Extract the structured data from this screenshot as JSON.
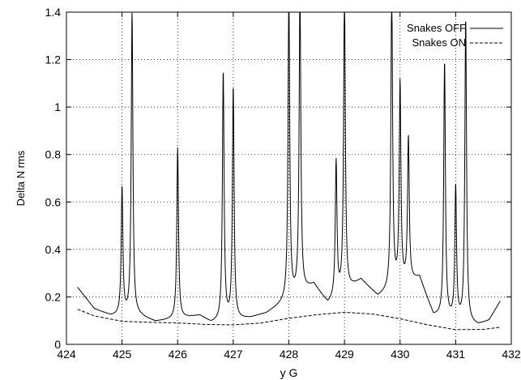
{
  "chart_data": {
    "type": "line",
    "title": "",
    "xlabel": "y G",
    "ylabel": "Delta N rms",
    "xlim": [
      424,
      432
    ],
    "ylim": [
      0,
      1.4
    ],
    "x_ticks": [
      424,
      425,
      426,
      427,
      428,
      429,
      430,
      431,
      432
    ],
    "x_tick_labels": [
      "424",
      "425",
      "426",
      "427",
      "428",
      "429",
      "430",
      "431",
      "432"
    ],
    "y_ticks": [
      0,
      0.2,
      0.4,
      0.6,
      0.8,
      1,
      1.2,
      1.4
    ],
    "y_tick_labels": [
      "0",
      "0.2",
      "0.4",
      "0.6",
      "0.8",
      "1",
      "1.2",
      "1.4"
    ],
    "grid": "dotted",
    "legend_position": "top-right",
    "series": [
      {
        "name": "Snakes OFF",
        "style": "solid",
        "color": "#000000",
        "resonances": [
          {
            "x": 425.0,
            "peak": 0.66
          },
          {
            "x": 425.18,
            "peak": 1.4
          },
          {
            "x": 426.0,
            "peak": 0.84
          },
          {
            "x": 426.82,
            "peak": 1.17
          },
          {
            "x": 427.0,
            "peak": 1.1
          },
          {
            "x": 428.0,
            "peak": 1.4
          },
          {
            "x": 428.2,
            "peak": 1.4
          },
          {
            "x": 428.85,
            "peak": 0.69
          },
          {
            "x": 429.0,
            "peak": 1.4
          },
          {
            "x": 429.85,
            "peak": 1.4
          },
          {
            "x": 430.0,
            "peak": 0.97
          },
          {
            "x": 430.15,
            "peak": 0.73
          },
          {
            "x": 430.8,
            "peak": 1.2
          },
          {
            "x": 431.0,
            "peak": 0.68
          },
          {
            "x": 431.18,
            "peak": 1.4
          }
        ],
        "x": [
          424.2,
          424.5,
          424.8,
          425.3,
          425.6,
          426.4,
          426.6,
          427.3,
          427.6,
          428.45,
          428.7,
          429.3,
          429.6,
          430.35,
          430.6,
          431.4,
          431.6,
          431.8
        ],
        "values": [
          0.24,
          0.15,
          0.12,
          0.12,
          0.095,
          0.12,
          0.09,
          0.11,
          0.13,
          0.25,
          0.17,
          0.27,
          0.2,
          0.28,
          0.12,
          0.08,
          0.1,
          0.18
        ]
      },
      {
        "name": "Snakes ON",
        "style": "dashed",
        "color": "#000000",
        "x": [
          424.2,
          424.5,
          425.0,
          425.5,
          426.0,
          426.5,
          427.0,
          427.5,
          428.0,
          428.5,
          429.0,
          429.5,
          430.0,
          430.5,
          431.0,
          431.5,
          431.8
        ],
        "values": [
          0.148,
          0.12,
          0.097,
          0.093,
          0.09,
          0.084,
          0.082,
          0.09,
          0.11,
          0.125,
          0.135,
          0.128,
          0.108,
          0.082,
          0.062,
          0.063,
          0.072
        ]
      }
    ]
  }
}
